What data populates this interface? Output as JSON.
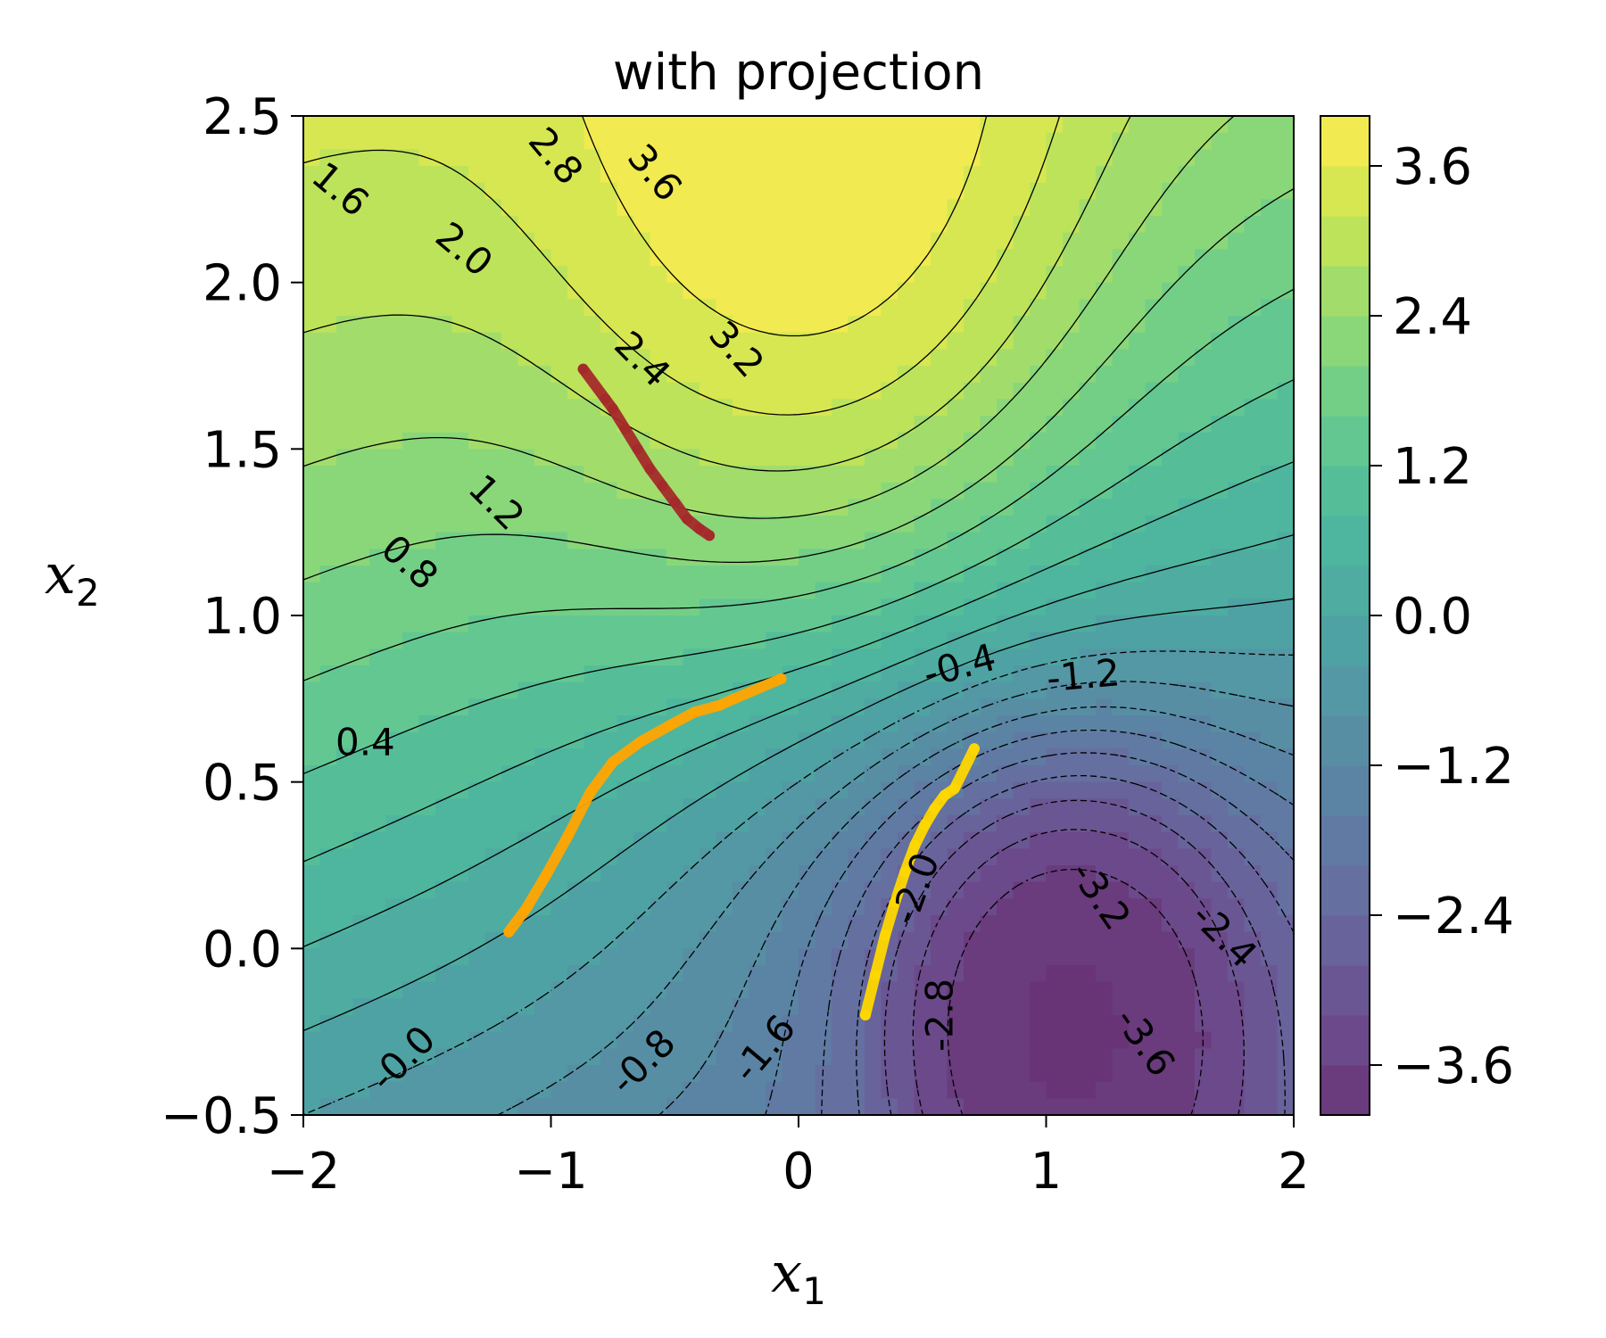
{
  "chart_data": {
    "type": "contour",
    "title": "with projection",
    "xlabel": "x",
    "xlabel_sub": "1",
    "ylabel": "x",
    "ylabel_sub": "2",
    "xlim": [
      -2,
      2
    ],
    "ylim": [
      -0.5,
      2.5
    ],
    "xticks": [
      -2,
      -1,
      0,
      1,
      2
    ],
    "xtick_labels": [
      "−2",
      "−1",
      "0",
      "1",
      "2"
    ],
    "yticks": [
      -0.5,
      0.0,
      0.5,
      1.0,
      1.5,
      2.0,
      2.5
    ],
    "ytick_labels": [
      "−0.5",
      "0.0",
      "0.5",
      "1.0",
      "1.5",
      "2.0",
      "2.5"
    ],
    "colorbar": {
      "range": [
        -4.0,
        4.0
      ],
      "ticks": [
        3.6,
        2.4,
        1.2,
        0.0,
        -1.2,
        -2.4,
        -3.6
      ],
      "tick_labels": [
        "3.6",
        "2.4",
        "1.2",
        "0.0",
        "−1.2",
        "−2.4",
        "−3.6"
      ],
      "colormap": "viridis"
    },
    "contour_labels": [
      {
        "text": "1.6",
        "x": -1.85,
        "y": 2.28,
        "angle": 40
      },
      {
        "text": "2.0",
        "x": -1.35,
        "y": 2.1,
        "angle": 40
      },
      {
        "text": "2.8",
        "x": -0.98,
        "y": 2.38,
        "angle": 50
      },
      {
        "text": "3.6",
        "x": -0.58,
        "y": 2.33,
        "angle": 50
      },
      {
        "text": "2.4",
        "x": -0.63,
        "y": 1.77,
        "angle": 45
      },
      {
        "text": "3.2",
        "x": -0.25,
        "y": 1.8,
        "angle": 48
      },
      {
        "text": "1.2",
        "x": -1.22,
        "y": 1.34,
        "angle": 45
      },
      {
        "text": "0.8",
        "x": -1.57,
        "y": 1.16,
        "angle": 42
      },
      {
        "text": "0.4",
        "x": -1.75,
        "y": 0.62,
        "angle": 0
      },
      {
        "text": "-0.4",
        "x": 0.65,
        "y": 0.85,
        "angle": -15
      },
      {
        "text": "-1.2",
        "x": 1.15,
        "y": 0.82,
        "angle": -5
      },
      {
        "text": "-2.0",
        "x": 0.47,
        "y": 0.18,
        "angle": -70
      },
      {
        "text": "-3.2",
        "x": 1.22,
        "y": 0.16,
        "angle": 55
      },
      {
        "text": "-2.4",
        "x": 1.72,
        "y": 0.04,
        "angle": 45
      },
      {
        "text": "-3.6",
        "x": 1.4,
        "y": -0.28,
        "angle": 55
      },
      {
        "text": "-2.8",
        "x": 0.57,
        "y": -0.2,
        "angle": -90
      },
      {
        "text": "-1.6",
        "x": -0.14,
        "y": -0.3,
        "angle": -50
      },
      {
        "text": "-0.8",
        "x": -0.63,
        "y": -0.34,
        "angle": -45
      },
      {
        "text": "-0.0",
        "x": -1.6,
        "y": -0.33,
        "angle": -45
      }
    ],
    "trajectories": [
      {
        "color": "#a52a2a",
        "points": [
          [
            -0.87,
            1.74
          ],
          [
            -0.78,
            1.65
          ],
          [
            -0.75,
            1.62
          ],
          [
            -0.7,
            1.56
          ],
          [
            -0.65,
            1.5
          ],
          [
            -0.6,
            1.44
          ],
          [
            -0.55,
            1.39
          ],
          [
            -0.5,
            1.34
          ],
          [
            -0.45,
            1.29
          ],
          [
            -0.4,
            1.26
          ],
          [
            -0.36,
            1.24
          ]
        ]
      },
      {
        "color": "#ffa500",
        "points": [
          [
            -1.17,
            0.05
          ],
          [
            -1.1,
            0.12
          ],
          [
            -1.02,
            0.22
          ],
          [
            -0.93,
            0.34
          ],
          [
            -0.84,
            0.47
          ],
          [
            -0.75,
            0.56
          ],
          [
            -0.64,
            0.62
          ],
          [
            -0.52,
            0.67
          ],
          [
            -0.42,
            0.71
          ],
          [
            -0.32,
            0.73
          ],
          [
            -0.26,
            0.75
          ],
          [
            -0.07,
            0.81
          ]
        ]
      },
      {
        "color": "#ffd700",
        "points": [
          [
            0.27,
            -0.2
          ],
          [
            0.31,
            -0.08
          ],
          [
            0.35,
            0.04
          ],
          [
            0.39,
            0.14
          ],
          [
            0.43,
            0.23
          ],
          [
            0.47,
            0.31
          ],
          [
            0.51,
            0.37
          ],
          [
            0.55,
            0.42
          ],
          [
            0.59,
            0.46
          ],
          [
            0.63,
            0.48
          ],
          [
            0.71,
            0.6
          ]
        ]
      }
    ]
  }
}
